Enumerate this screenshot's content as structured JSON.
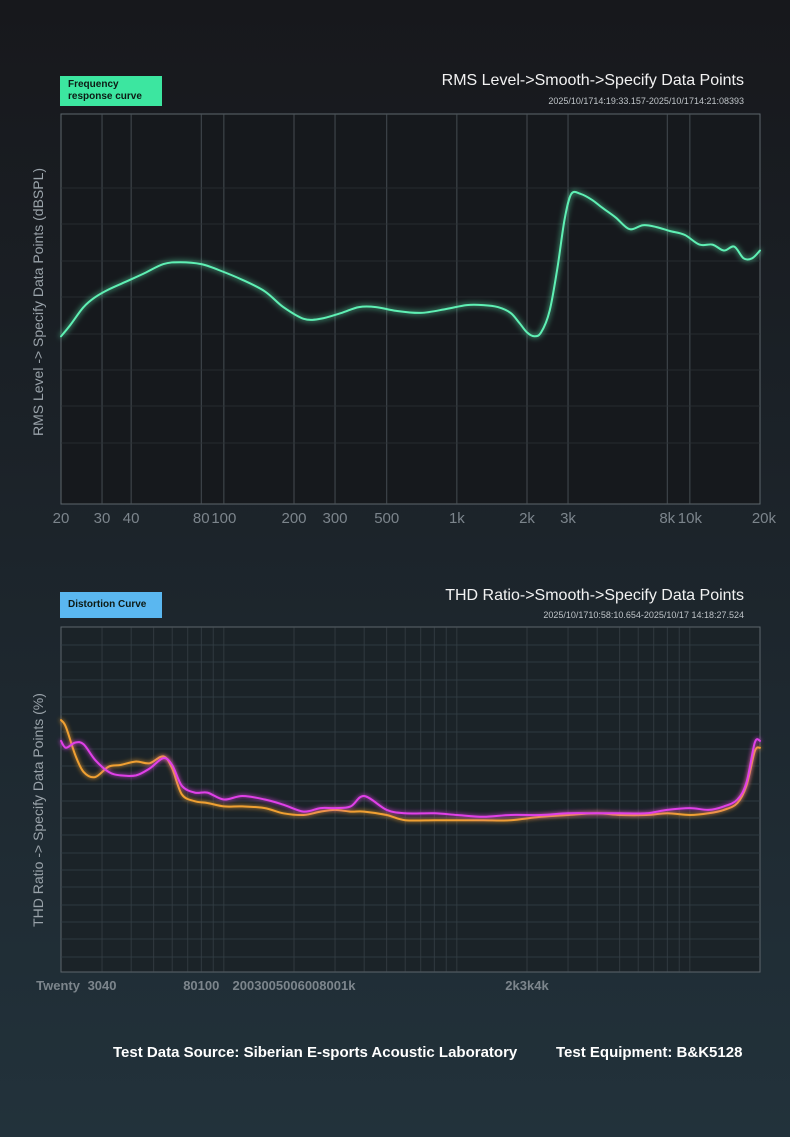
{
  "colors": {
    "fr_line": "#5ef0b4",
    "thd_orange": "#f0a030",
    "thd_magenta": "#e040e8",
    "grid": "#4a5258"
  },
  "chart_data": [
    {
      "type": "line",
      "badge": "Frequency response curve",
      "title": "RMS Level->Smooth->Specify Data Points",
      "timestamp": "2025/10/1714:19:33.157-2025/10/1714:21:08393",
      "ylabel": "RMS Level -> Specify Data Points (dBSPL)",
      "xlabel": "",
      "xscale": "log",
      "xlim": [
        20,
        20000
      ],
      "ylim": [
        0,
        100
      ],
      "tick_labels": [
        {
          "f": 20,
          "label": "20"
        },
        {
          "f": 30,
          "label": "30"
        },
        {
          "f": 40,
          "label": "40"
        },
        {
          "f": 80,
          "label": "80"
        },
        {
          "f": 100,
          "label": "100"
        },
        {
          "f": 200,
          "label": "200"
        },
        {
          "f": 300,
          "label": "300"
        },
        {
          "f": 500,
          "label": "500"
        },
        {
          "f": 1000,
          "label": "1k"
        },
        {
          "f": 2000,
          "label": "2k"
        },
        {
          "f": 3000,
          "label": "3k"
        },
        {
          "f": 8000,
          "label": "8k"
        },
        {
          "f": 10000,
          "label": "10k"
        },
        {
          "f": 20000,
          "label": "20k"
        }
      ],
      "series": [
        {
          "name": "RMS Level",
          "x": [
            20,
            22,
            25,
            28,
            32,
            38,
            45,
            55,
            65,
            80,
            95,
            120,
            150,
            180,
            220,
            260,
            320,
            380,
            450,
            550,
            700,
            900,
            1100,
            1300,
            1500,
            1700,
            1850,
            2000,
            2150,
            2300,
            2500,
            2700,
            2900,
            3100,
            3400,
            3800,
            4200,
            4800,
            5500,
            6300,
            7200,
            8200,
            9500,
            11000,
            12500,
            14000,
            15500,
            17000,
            18500,
            20000
          ],
          "values": [
            43,
            46,
            50.5,
            53,
            55,
            57,
            59,
            61.5,
            62,
            61.5,
            60,
            57.5,
            54.5,
            50.5,
            47.5,
            47.5,
            49,
            50.5,
            50.5,
            49.5,
            49,
            50,
            51,
            51,
            50.5,
            49,
            46.5,
            44,
            43,
            44,
            49.5,
            60.5,
            73,
            79.5,
            79.5,
            78,
            76,
            73.5,
            70.5,
            71.5,
            71,
            70,
            69,
            66.5,
            66.5,
            65,
            66,
            63,
            63,
            65
          ]
        }
      ]
    },
    {
      "type": "line",
      "badge": "Distortion Curve",
      "title": "THD Ratio->Smooth->Specify Data Points",
      "timestamp": "2025/10/1710:58:10.654-2025/10/17 14:18:27.524",
      "ylabel": "THD Ratio -> Specify Data Points (%)",
      "xlabel": "",
      "xscale": "log",
      "xlim": [
        20,
        20000
      ],
      "ylim": [
        0,
        100
      ],
      "tick_labels": [
        {
          "f": 20,
          "label": "Twenty"
        },
        {
          "f": 30,
          "label": "3040"
        },
        {
          "f": 80,
          "label": "80100"
        },
        {
          "f": 200,
          "label": "2003005006008001k"
        },
        {
          "f": 2000,
          "label": "2k3k4k"
        }
      ],
      "series": [
        {
          "name": "THD orange",
          "x": [
            20,
            21,
            23,
            25,
            28,
            32,
            36,
            42,
            48,
            55,
            60,
            66,
            75,
            85,
            100,
            120,
            150,
            180,
            220,
            260,
            300,
            350,
            400,
            500,
            600,
            800,
            1000,
            1300,
            1700,
            2300,
            3000,
            4000,
            5000,
            6500,
            8000,
            10000,
            12000,
            14000,
            16000,
            17500,
            19000,
            20000
          ],
          "values": [
            73,
            71,
            63,
            58,
            56.5,
            59.5,
            60,
            61,
            60.5,
            62.5,
            59,
            51.5,
            49.5,
            49,
            48,
            48,
            47.5,
            46,
            45.5,
            46.5,
            47,
            46.5,
            46.5,
            45.5,
            44,
            44,
            44,
            44,
            44,
            45,
            45.5,
            46,
            45.5,
            45.5,
            46,
            45.5,
            46,
            47,
            49,
            54,
            64,
            65
          ]
        },
        {
          "name": "THD magenta",
          "x": [
            20,
            21,
            23,
            25,
            28,
            32,
            36,
            42,
            48,
            55,
            60,
            66,
            75,
            85,
            100,
            120,
            150,
            180,
            220,
            260,
            300,
            350,
            400,
            500,
            600,
            800,
            1000,
            1300,
            1700,
            2300,
            3000,
            4000,
            5000,
            6500,
            8000,
            10000,
            12000,
            14000,
            16000,
            17500,
            19000,
            20000
          ],
          "values": [
            67,
            65,
            66.5,
            66,
            61.5,
            58,
            57,
            57,
            59,
            62,
            60,
            54,
            52,
            52,
            50,
            51,
            50,
            48.5,
            46.5,
            47.5,
            47.5,
            48,
            51,
            47,
            46,
            46,
            45.5,
            45,
            45.5,
            45.5,
            46,
            46,
            46,
            46,
            47,
            47.5,
            47,
            48,
            50,
            55,
            66.5,
            67
          ]
        }
      ]
    }
  ],
  "footer": {
    "source": "Test Data Source: Siberian E-sports Acoustic Laboratory",
    "equipment": "Test Equipment: B&K5128"
  }
}
